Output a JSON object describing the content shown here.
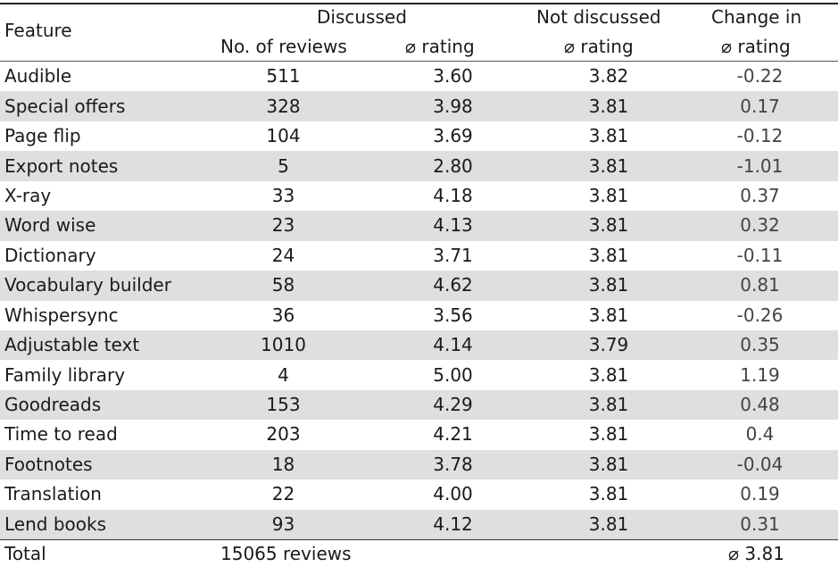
{
  "header": {
    "feature_label": "Feature",
    "discussed_label": "Discussed",
    "not_discussed_label": "Not discussed",
    "change_label": "Change in",
    "no_reviews_label": "No. of reviews",
    "rating_label": "⌀ rating",
    "not_rating_label": "⌀ rating",
    "change_rating_label": "⌀ rating"
  },
  "rows": [
    {
      "feature": "Audible",
      "reviews": "511",
      "rating": "3.60",
      "not_rating": "3.82",
      "change": "-0.22"
    },
    {
      "feature": "Special offers",
      "reviews": "328",
      "rating": "3.98",
      "not_rating": "3.81",
      "change": "0.17"
    },
    {
      "feature": "Page flip",
      "reviews": "104",
      "rating": "3.69",
      "not_rating": "3.81",
      "change": "-0.12"
    },
    {
      "feature": "Export notes",
      "reviews": "5",
      "rating": "2.80",
      "not_rating": "3.81",
      "change": "-1.01"
    },
    {
      "feature": "X-ray",
      "reviews": "33",
      "rating": "4.18",
      "not_rating": "3.81",
      "change": "0.37"
    },
    {
      "feature": "Word wise",
      "reviews": "23",
      "rating": "4.13",
      "not_rating": "3.81",
      "change": "0.32"
    },
    {
      "feature": "Dictionary",
      "reviews": "24",
      "rating": "3.71",
      "not_rating": "3.81",
      "change": "-0.11"
    },
    {
      "feature": "Vocabulary builder",
      "reviews": "58",
      "rating": "4.62",
      "not_rating": "3.81",
      "change": "0.81"
    },
    {
      "feature": "Whispersync",
      "reviews": "36",
      "rating": "3.56",
      "not_rating": "3.81",
      "change": "-0.26"
    },
    {
      "feature": "Adjustable text",
      "reviews": "1010",
      "rating": "4.14",
      "not_rating": "3.79",
      "change": "0.35"
    },
    {
      "feature": "Family library",
      "reviews": "4",
      "rating": "5.00",
      "not_rating": "3.81",
      "change": "1.19"
    },
    {
      "feature": "Goodreads",
      "reviews": "153",
      "rating": "4.29",
      "not_rating": "3.81",
      "change": "0.48"
    },
    {
      "feature": "Time to read",
      "reviews": "203",
      "rating": "4.21",
      "not_rating": "3.81",
      "change": "0.4"
    },
    {
      "feature": "Footnotes",
      "reviews": "18",
      "rating": "3.78",
      "not_rating": "3.81",
      "change": "-0.04"
    },
    {
      "feature": "Translation",
      "reviews": "22",
      "rating": "4.00",
      "not_rating": "3.81",
      "change": "0.19"
    },
    {
      "feature": "Lend books",
      "reviews": "93",
      "rating": "4.12",
      "not_rating": "3.81",
      "change": "0.31"
    }
  ],
  "total": {
    "label": "Total",
    "reviews": "15065 reviews",
    "rating": "⌀ 3.81"
  }
}
